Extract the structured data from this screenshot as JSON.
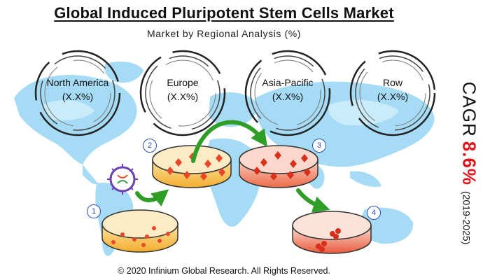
{
  "title": "Global Induced Pluripotent Stem Cells Market",
  "subtitle": "Market by Regional Analysis (%)",
  "regions": [
    {
      "name": "North America",
      "value": "(X.X%)"
    },
    {
      "name": "Europe",
      "value": "(X.X%)"
    },
    {
      "name": "Asia-Pacific",
      "value": "(X.X%)"
    },
    {
      "name": "Row",
      "value": "(X.X%)"
    }
  ],
  "cagr": {
    "label": "CAGR",
    "value": "8.6%",
    "period": "(2019-2025)"
  },
  "steps": [
    "1",
    "2",
    "3",
    "4"
  ],
  "footer": "© 2020 Infinium Global Research. All Rights Reserved.",
  "colors": {
    "map": "#9fd8f4",
    "arrow": "#2f9e27",
    "accent": "#e3141b",
    "step": "#2a4fb5"
  }
}
